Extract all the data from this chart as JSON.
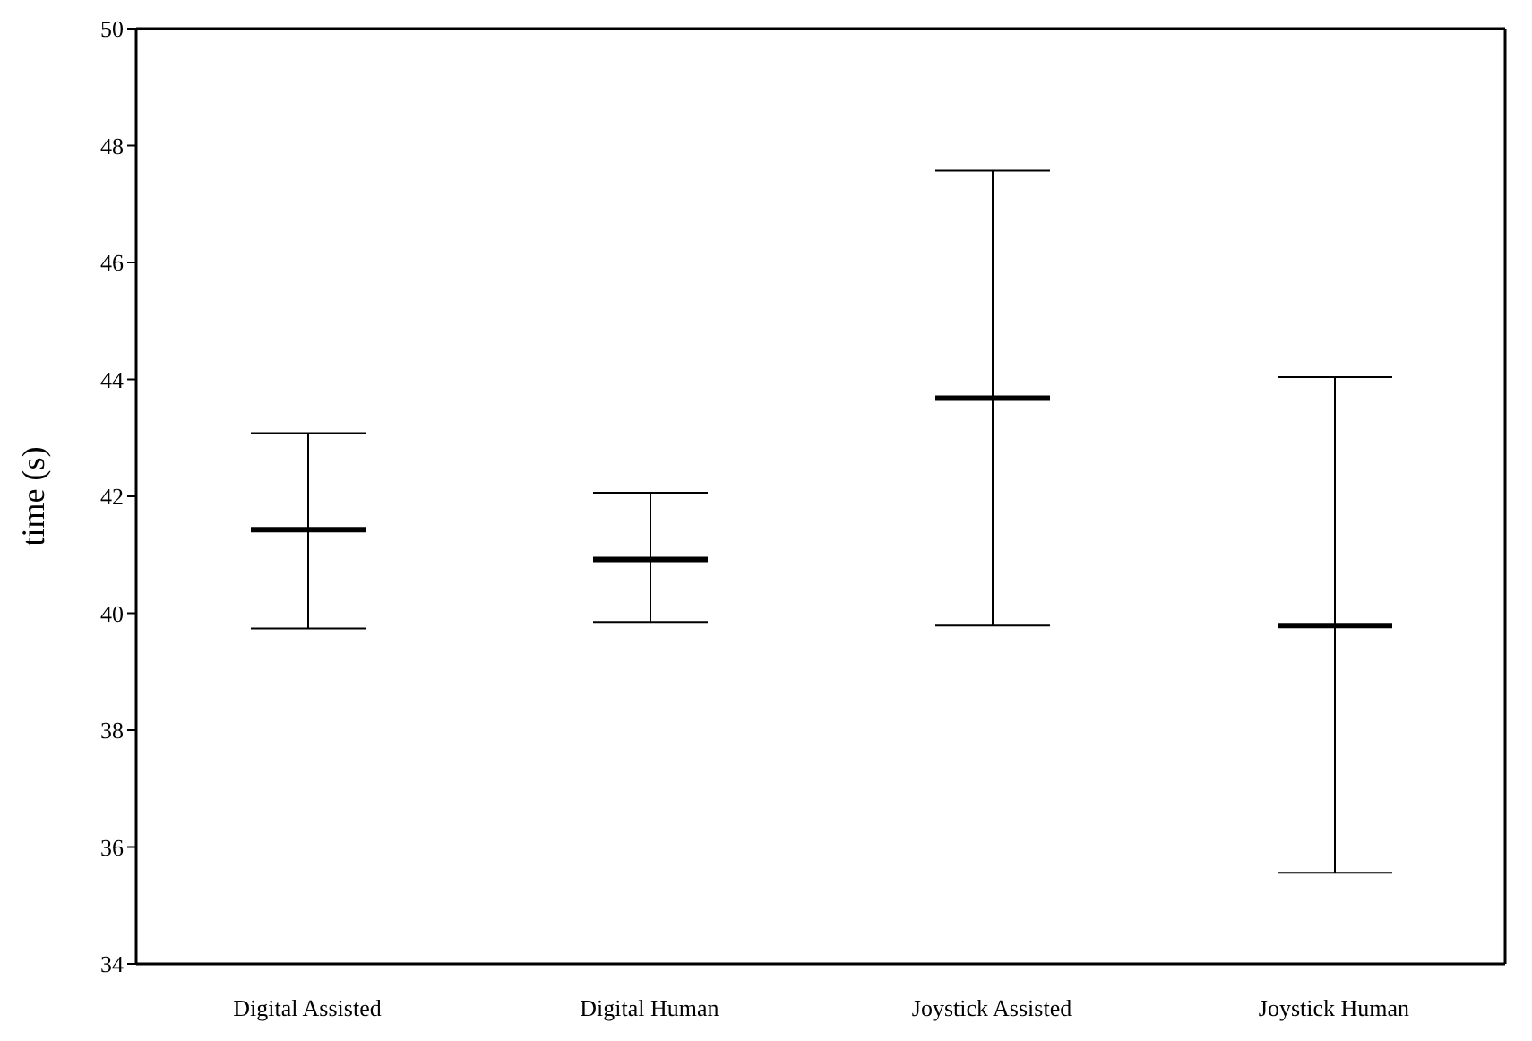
{
  "chart_data": {
    "type": "box",
    "ylabel": "time (s)",
    "categories": [
      "Digital Assisted",
      "Digital Human",
      "Joystick Assisted",
      "Joystick Human"
    ],
    "boxes": [
      {
        "low": 39.74,
        "q1": 41.43,
        "median": 41.43,
        "q3": 41.43,
        "high": 43.08
      },
      {
        "low": 39.85,
        "q1": 40.92,
        "median": 40.92,
        "q3": 40.92,
        "high": 42.06
      },
      {
        "low": 39.79,
        "q1": 43.68,
        "median": 43.68,
        "q3": 43.68,
        "high": 47.57
      },
      {
        "low": 35.56,
        "q1": 39.79,
        "median": 39.79,
        "q3": 39.79,
        "high": 44.04
      }
    ],
    "color": "#000000",
    "ylim": [
      34,
      50
    ],
    "yticks": [
      34,
      36,
      38,
      40,
      42,
      44,
      46,
      48,
      50
    ],
    "grid": false
  }
}
